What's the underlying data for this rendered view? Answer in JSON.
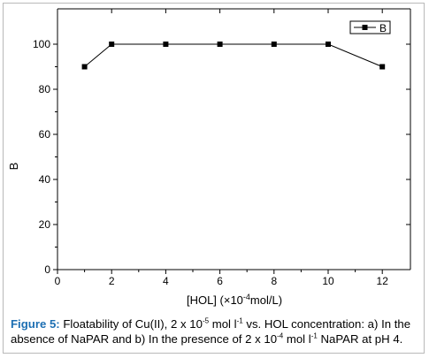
{
  "chart_data": {
    "type": "line",
    "x": [
      1,
      2,
      4,
      6,
      8,
      10,
      12
    ],
    "series": [
      {
        "name": "B",
        "values": [
          90,
          100,
          100,
          100,
          100,
          100,
          90
        ]
      }
    ],
    "xlabel": {
      "pre": "[HOL] (×10",
      "sup": "-4",
      "post": "mol/L)"
    },
    "ylabel": "B",
    "xlim": [
      0,
      13
    ],
    "ylim": [
      0,
      110
    ],
    "xticks": [
      0,
      2,
      4,
      6,
      8,
      10,
      12
    ],
    "yticks": [
      0,
      20,
      40,
      60,
      80,
      100
    ],
    "grid": false,
    "legend": "top-right",
    "marker": "square",
    "colors": {
      "line": "#000000",
      "axes": "#000000"
    }
  },
  "caption": {
    "label": "Figure 5:",
    "t1": " Floatability of Cu(II), 2 x 10",
    "s1": "-5",
    "t2": " mol l",
    "s2": "-1",
    "t3": " vs. HOL concentration: a) In the absence of NaPAR and b) In the presence of 2 x 10",
    "s3": "-4",
    "t4": " mol l",
    "s4": "-1",
    "t5": " NaPAR at pH 4."
  }
}
